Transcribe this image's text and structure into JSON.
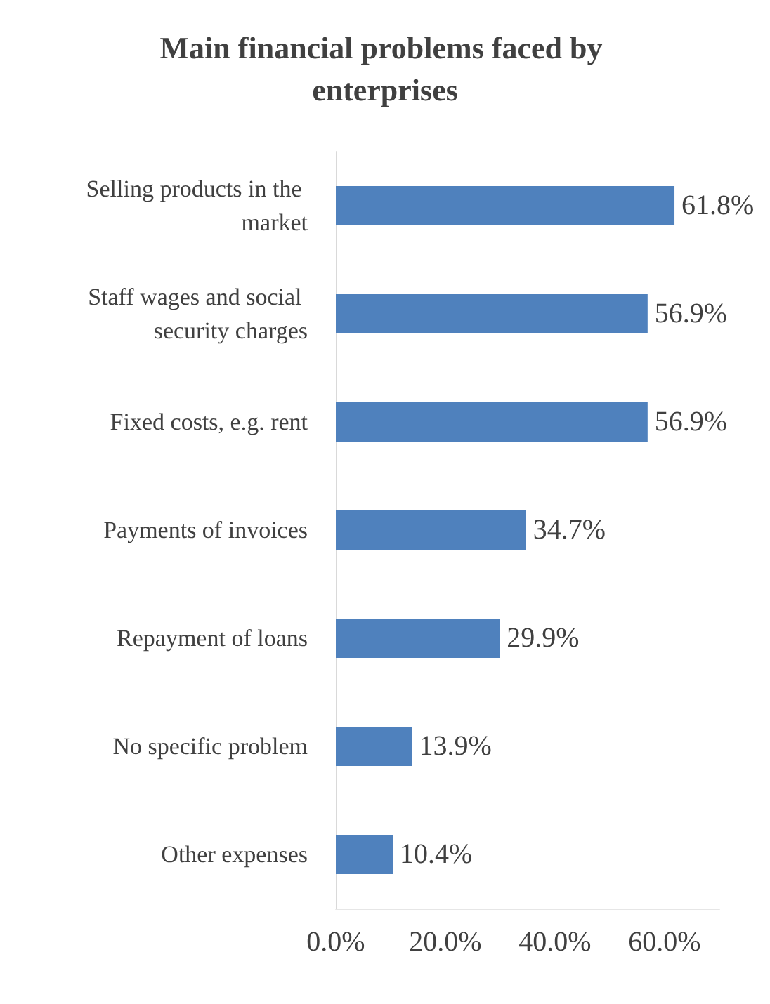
{
  "chart_data": {
    "type": "bar",
    "orientation": "horizontal",
    "title": "Main financial problems faced by enterprises",
    "categories": [
      "Selling products in the market",
      "Staff wages and social security charges",
      "Fixed costs, e.g. rent",
      "Payments of invoices",
      "Repayment of loans",
      "No specific problem",
      "Other expenses"
    ],
    "values": [
      61.8,
      56.9,
      56.9,
      34.7,
      29.9,
      13.9,
      10.4
    ],
    "value_labels": [
      "61.8%",
      "56.9%",
      "56.9%",
      "34.7%",
      "29.9%",
      "13.9%",
      "10.4%"
    ],
    "color": "#4f81bd",
    "xlim": [
      0,
      70
    ],
    "xticks": [
      {
        "value": 0,
        "label": "0.0%"
      },
      {
        "value": 20,
        "label": "20.0%"
      },
      {
        "value": 40,
        "label": "40.0%"
      },
      {
        "value": 60,
        "label": "60.0%"
      }
    ],
    "grid": false
  }
}
